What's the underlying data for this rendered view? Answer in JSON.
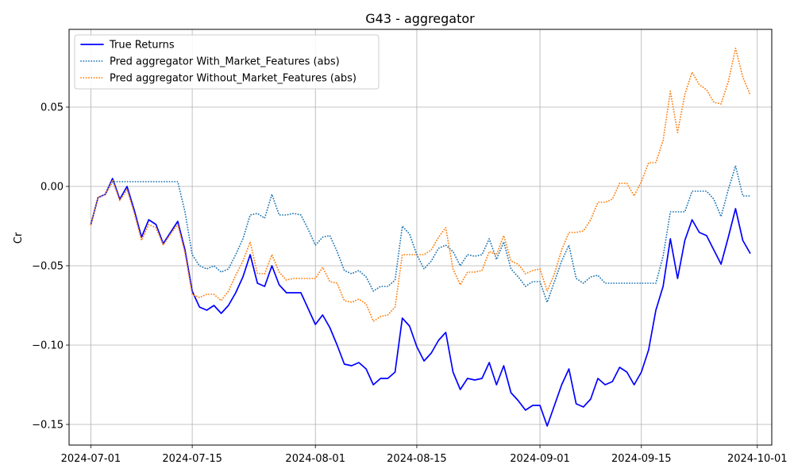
{
  "chart_data": {
    "type": "line",
    "title": "G43 - aggregator",
    "xlabel": "",
    "ylabel": "Cr",
    "x_tick_labels": [
      "2024-07-01",
      "2024-07-15",
      "2024-08-01",
      "2024-08-15",
      "2024-09-01",
      "2024-09-15",
      "2024-10-01"
    ],
    "x_tick_dates": [
      "2024-07-01",
      "2024-07-15",
      "2024-08-01",
      "2024-08-15",
      "2024-09-01",
      "2024-09-15",
      "2024-10-01"
    ],
    "y_tick_labels": [
      "−0.15",
      "−0.10",
      "−0.05",
      "0.00",
      "0.05"
    ],
    "y_tick_values": [
      -0.15,
      -0.1,
      -0.05,
      0.0,
      0.05
    ],
    "xlim": [
      "2024-06-28",
      "2024-10-03"
    ],
    "ylim": [
      -0.163,
      0.099
    ],
    "grid": true,
    "legend_position": "upper-left",
    "x": [
      "2024-07-01",
      "2024-07-02",
      "2024-07-03",
      "2024-07-04",
      "2024-07-05",
      "2024-07-06",
      "2024-07-07",
      "2024-07-08",
      "2024-07-09",
      "2024-07-10",
      "2024-07-11",
      "2024-07-12",
      "2024-07-13",
      "2024-07-14",
      "2024-07-15",
      "2024-07-16",
      "2024-07-17",
      "2024-07-18",
      "2024-07-19",
      "2024-07-20",
      "2024-07-21",
      "2024-07-22",
      "2024-07-23",
      "2024-07-24",
      "2024-07-25",
      "2024-07-26",
      "2024-07-27",
      "2024-07-28",
      "2024-07-29",
      "2024-07-30",
      "2024-07-31",
      "2024-08-01",
      "2024-08-02",
      "2024-08-03",
      "2024-08-04",
      "2024-08-05",
      "2024-08-06",
      "2024-08-07",
      "2024-08-08",
      "2024-08-09",
      "2024-08-10",
      "2024-08-11",
      "2024-08-12",
      "2024-08-13",
      "2024-08-14",
      "2024-08-15",
      "2024-08-16",
      "2024-08-17",
      "2024-08-18",
      "2024-08-19",
      "2024-08-20",
      "2024-08-21",
      "2024-08-22",
      "2024-08-23",
      "2024-08-24",
      "2024-08-25",
      "2024-08-26",
      "2024-08-27",
      "2024-08-28",
      "2024-08-29",
      "2024-08-30",
      "2024-08-31",
      "2024-09-01",
      "2024-09-02",
      "2024-09-03",
      "2024-09-04",
      "2024-09-05",
      "2024-09-06",
      "2024-09-07",
      "2024-09-08",
      "2024-09-09",
      "2024-09-10",
      "2024-09-11",
      "2024-09-12",
      "2024-09-13",
      "2024-09-14",
      "2024-09-15",
      "2024-09-16",
      "2024-09-17",
      "2024-09-18",
      "2024-09-19",
      "2024-09-20",
      "2024-09-21",
      "2024-09-22",
      "2024-09-23",
      "2024-09-24",
      "2024-09-25",
      "2024-09-26",
      "2024-09-27",
      "2024-09-28",
      "2024-09-29",
      "2024-09-30"
    ],
    "series": [
      {
        "name": "True Returns",
        "color": "#0000ff",
        "style": "solid",
        "values": [
          -0.024,
          -0.007,
          -0.005,
          0.005,
          -0.008,
          0.0,
          -0.015,
          -0.032,
          -0.021,
          -0.024,
          -0.036,
          -0.029,
          -0.022,
          -0.04,
          -0.066,
          -0.076,
          -0.078,
          -0.075,
          -0.08,
          -0.075,
          -0.067,
          -0.057,
          -0.043,
          -0.061,
          -0.063,
          -0.05,
          -0.062,
          -0.067,
          -0.067,
          -0.067,
          -0.077,
          -0.087,
          -0.081,
          -0.089,
          -0.1,
          -0.112,
          -0.113,
          -0.111,
          -0.115,
          -0.125,
          -0.121,
          -0.121,
          -0.117,
          -0.083,
          -0.088,
          -0.101,
          -0.11,
          -0.105,
          -0.097,
          -0.092,
          -0.117,
          -0.128,
          -0.121,
          -0.122,
          -0.121,
          -0.111,
          -0.125,
          -0.113,
          -0.13,
          -0.135,
          -0.141,
          -0.138,
          -0.138,
          -0.151,
          -0.138,
          -0.125,
          -0.115,
          -0.137,
          -0.139,
          -0.134,
          -0.121,
          -0.125,
          -0.123,
          -0.114,
          -0.117,
          -0.125,
          -0.117,
          -0.103,
          -0.078,
          -0.063,
          -0.033,
          -0.058,
          -0.034,
          -0.021,
          -0.029,
          -0.031,
          -0.04,
          -0.049,
          -0.032,
          -0.014,
          -0.034,
          -0.042
        ]
      },
      {
        "name": "Pred aggregator With_Market_Features (abs)",
        "color": "#1f77b4",
        "style": "dotted",
        "values": [
          -0.024,
          -0.007,
          -0.005,
          0.003,
          0.003,
          0.003,
          0.003,
          0.003,
          0.003,
          0.003,
          0.003,
          0.003,
          0.003,
          -0.016,
          -0.043,
          -0.05,
          -0.052,
          -0.05,
          -0.054,
          -0.052,
          -0.043,
          -0.033,
          -0.018,
          -0.017,
          -0.02,
          -0.005,
          -0.018,
          -0.018,
          -0.017,
          -0.018,
          -0.027,
          -0.037,
          -0.032,
          -0.031,
          -0.041,
          -0.053,
          -0.055,
          -0.053,
          -0.057,
          -0.066,
          -0.063,
          -0.063,
          -0.059,
          -0.025,
          -0.03,
          -0.043,
          -0.052,
          -0.047,
          -0.039,
          -0.037,
          -0.041,
          -0.05,
          -0.043,
          -0.044,
          -0.043,
          -0.033,
          -0.046,
          -0.035,
          -0.052,
          -0.057,
          -0.063,
          -0.06,
          -0.06,
          -0.073,
          -0.06,
          -0.047,
          -0.037,
          -0.058,
          -0.061,
          -0.057,
          -0.056,
          -0.061,
          -0.061,
          -0.061,
          -0.061,
          -0.061,
          -0.061,
          -0.061,
          -0.061,
          -0.044,
          -0.016,
          -0.016,
          -0.016,
          -0.003,
          -0.003,
          -0.003,
          -0.008,
          -0.019,
          -0.002,
          0.013,
          -0.006,
          -0.006
        ]
      },
      {
        "name": "Pred aggregator Without_Market_Features (abs)",
        "color": "#ff7f0e",
        "style": "dotted",
        "values": [
          -0.024,
          -0.007,
          -0.005,
          0.004,
          -0.009,
          -0.002,
          -0.017,
          -0.034,
          -0.024,
          -0.026,
          -0.037,
          -0.03,
          -0.024,
          -0.042,
          -0.068,
          -0.07,
          -0.068,
          -0.068,
          -0.072,
          -0.066,
          -0.056,
          -0.047,
          -0.035,
          -0.055,
          -0.055,
          -0.043,
          -0.054,
          -0.059,
          -0.058,
          -0.058,
          -0.058,
          -0.058,
          -0.051,
          -0.06,
          -0.061,
          -0.072,
          -0.073,
          -0.071,
          -0.074,
          -0.085,
          -0.082,
          -0.081,
          -0.076,
          -0.043,
          -0.043,
          -0.043,
          -0.043,
          -0.04,
          -0.032,
          -0.026,
          -0.052,
          -0.062,
          -0.054,
          -0.054,
          -0.053,
          -0.041,
          -0.043,
          -0.031,
          -0.047,
          -0.049,
          -0.055,
          -0.053,
          -0.052,
          -0.066,
          -0.055,
          -0.04,
          -0.029,
          -0.029,
          -0.028,
          -0.021,
          -0.01,
          -0.01,
          -0.008,
          0.002,
          0.002,
          -0.006,
          0.003,
          0.015,
          0.015,
          0.029,
          0.06,
          0.034,
          0.058,
          0.072,
          0.064,
          0.061,
          0.053,
          0.052,
          0.066,
          0.087,
          0.069,
          0.058
        ]
      }
    ]
  }
}
